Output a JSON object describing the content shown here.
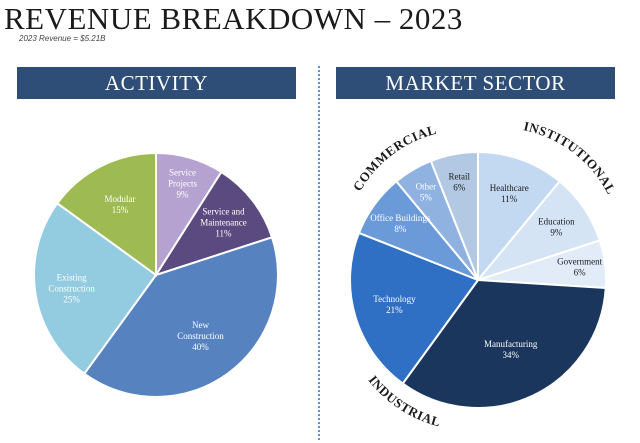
{
  "title": "REVENUE BREAKDOWN – 2023",
  "subtitle": "2023 Revenue = $5.21B",
  "chart_data": [
    {
      "type": "pie",
      "title": "ACTIVITY",
      "slices": [
        {
          "label": [
            "Service",
            "Projects"
          ],
          "pct_label": "9%",
          "value": 9,
          "color": "#b6a2d0",
          "text_color": "#ffffff"
        },
        {
          "label": [
            "Service and",
            "Maintenance"
          ],
          "pct_label": "11%",
          "value": 11,
          "color": "#5b4a80",
          "text_color": "#ffffff"
        },
        {
          "label": [
            "New",
            "Construction"
          ],
          "pct_label": "40%",
          "value": 40,
          "color": "#5683bf",
          "text_color": "#ffffff"
        },
        {
          "label": [
            "Existing",
            "Construction"
          ],
          "pct_label": "25%",
          "value": 25,
          "color": "#93cbe0",
          "text_color": "#ffffff"
        },
        {
          "label": [
            "Modular"
          ],
          "pct_label": "15%",
          "value": 15,
          "color": "#9dbb52",
          "text_color": "#ffffff"
        }
      ]
    },
    {
      "type": "pie",
      "title": "MARKET SECTOR",
      "slices": [
        {
          "label": [
            "Healthcare"
          ],
          "pct_label": "11%",
          "value": 11,
          "color": "#c3d8f1",
          "text_color": "#1b1b1b"
        },
        {
          "label": [
            "Education"
          ],
          "pct_label": "9%",
          "value": 9,
          "color": "#d4e4f5",
          "text_color": "#1b1b1b"
        },
        {
          "label": [
            "Government"
          ],
          "pct_label": "6%",
          "value": 6,
          "color": "#e2ecf8",
          "text_color": "#1b1b1b"
        },
        {
          "label": [
            "Manufacturing"
          ],
          "pct_label": "34%",
          "value": 34,
          "color": "#1b365d",
          "text_color": "#ffffff"
        },
        {
          "label": [
            "Technology"
          ],
          "pct_label": "21%",
          "value": 21,
          "color": "#2f70c4",
          "text_color": "#ffffff"
        },
        {
          "label": [
            "Office Buildings"
          ],
          "pct_label": "8%",
          "value": 8,
          "color": "#6a9ad8",
          "text_color": "#ffffff"
        },
        {
          "label": [
            "Other"
          ],
          "pct_label": "5%",
          "value": 5,
          "color": "#8fb2e0",
          "text_color": "#ffffff"
        },
        {
          "label": [
            "Retail"
          ],
          "pct_label": "6%",
          "value": 6,
          "color": "#b3c9e3",
          "text_color": "#1b1b1b"
        }
      ],
      "group_labels": [
        "COMMERCIAL",
        "INSTITUTIONAL",
        "INDUSTRIAL"
      ]
    }
  ]
}
